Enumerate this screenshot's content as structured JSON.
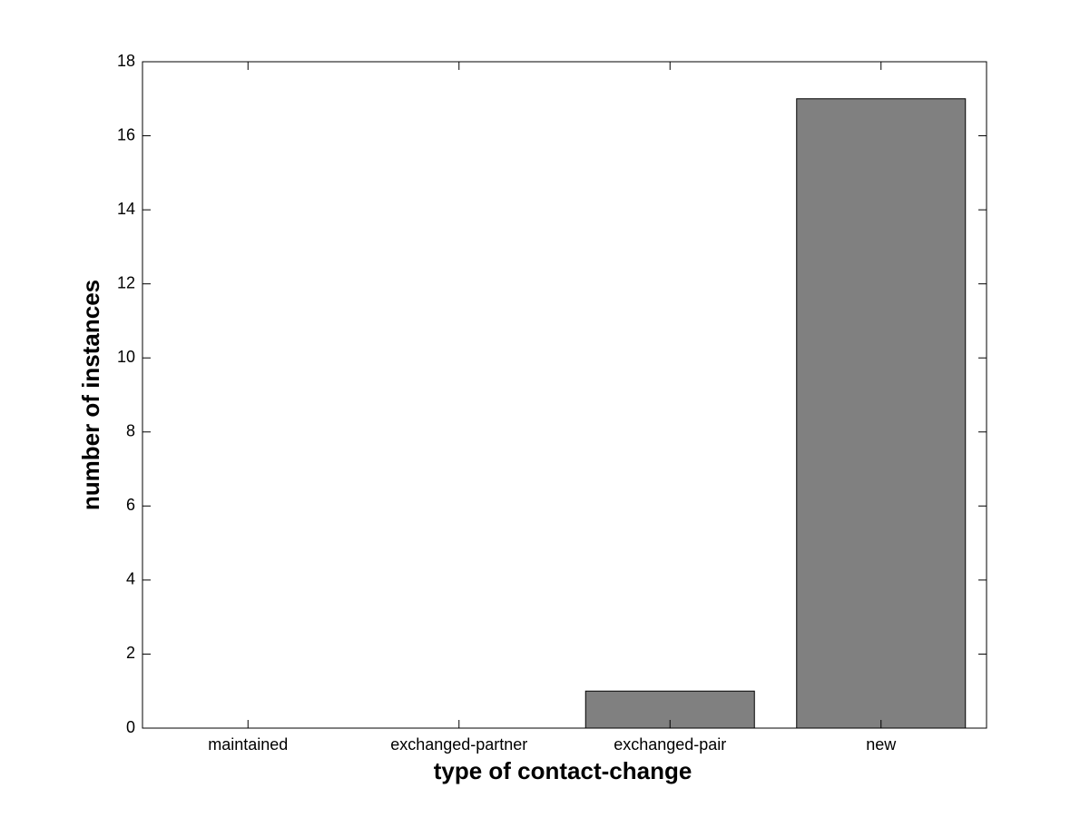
{
  "chart_data": {
    "type": "bar",
    "x_label": "type of contact-change",
    "y_label": "number of instances",
    "categories": [
      "maintained",
      "exchanged-partner",
      "exchanged-pair",
      "new"
    ],
    "values": [
      0,
      0,
      1,
      17
    ],
    "color": "#808080",
    "ylim": [
      0,
      18
    ],
    "yticks": [
      0,
      2,
      4,
      6,
      8,
      10,
      12,
      14,
      16,
      18
    ],
    "grid": false
  }
}
